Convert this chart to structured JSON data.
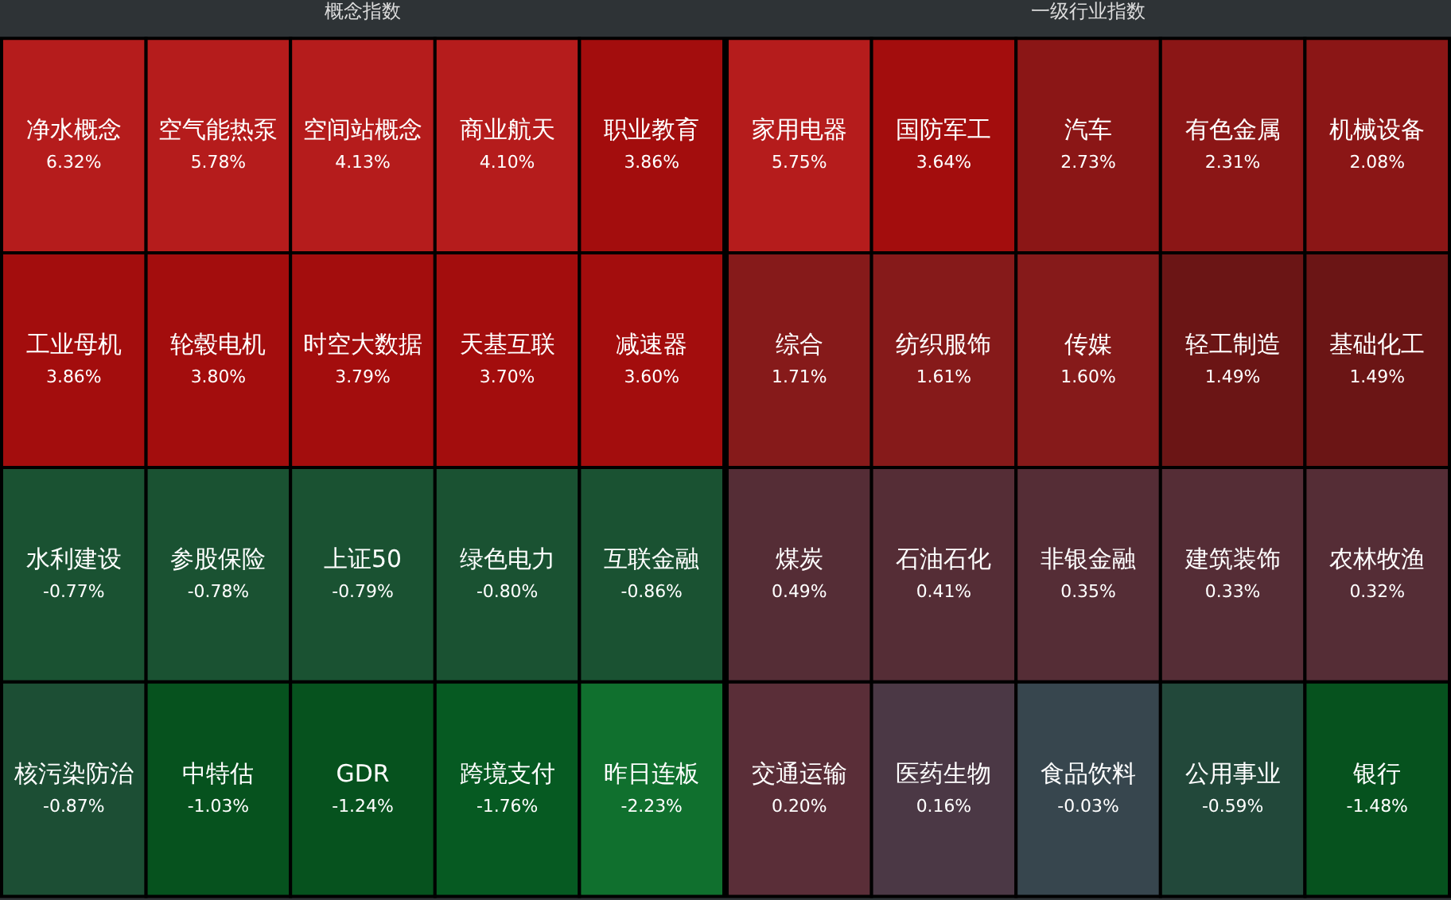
{
  "chart_data": [
    {
      "type": "other",
      "title": "概念指数",
      "categories": [
        "净水概念",
        "空气能热泵",
        "空间站概念",
        "商业航天",
        "职业教育",
        "工业母机",
        "轮毂电机",
        "时空大数据",
        "天基互联",
        "减速器",
        "水利建设",
        "参股保险",
        "上证50",
        "绿色电力",
        "互联金融",
        "核污染防治",
        "中特估",
        "GDR",
        "跨境支付",
        "昨日连板"
      ],
      "values": [
        6.32,
        5.78,
        4.13,
        4.1,
        3.86,
        3.86,
        3.8,
        3.79,
        3.7,
        3.6,
        -0.77,
        -0.78,
        -0.79,
        -0.8,
        -0.86,
        -0.87,
        -1.03,
        -1.24,
        -1.76,
        -2.23
      ],
      "value_labels": [
        "6.32%",
        "5.78%",
        "4.13%",
        "4.10%",
        "3.86%",
        "3.86%",
        "3.80%",
        "3.79%",
        "3.70%",
        "3.60%",
        "-0.77%",
        "-0.78%",
        "-0.79%",
        "-0.80%",
        "-0.86%",
        "-0.87%",
        "-1.03%",
        "-1.24%",
        "-1.76%",
        "-2.23%"
      ],
      "colors": [
        "#b51c1c",
        "#b51c1c",
        "#b51c1c",
        "#b51c1c",
        "#a30d0d",
        "#a30d0d",
        "#a30d0d",
        "#a30d0d",
        "#a30d0d",
        "#a30d0d",
        "#1a5232",
        "#1a5232",
        "#1a5232",
        "#1a5232",
        "#1a5232",
        "#1c4e34",
        "#06521e",
        "#06521e",
        "#065a22",
        "#10702e"
      ]
    },
    {
      "type": "other",
      "title": "一级行业指数",
      "categories": [
        "家用电器",
        "国防军工",
        "汽车",
        "有色金属",
        "机械设备",
        "综合",
        "纺织服饰",
        "传媒",
        "轻工制造",
        "基础化工",
        "煤炭",
        "石油石化",
        "非银金融",
        "建筑装饰",
        "农林牧渔",
        "交通运输",
        "医药生物",
        "食品饮料",
        "公用事业",
        "银行"
      ],
      "values": [
        5.75,
        3.64,
        2.73,
        2.31,
        2.08,
        1.71,
        1.61,
        1.6,
        1.49,
        1.49,
        0.49,
        0.41,
        0.35,
        0.33,
        0.32,
        0.2,
        0.16,
        -0.03,
        -0.59,
        -1.48
      ],
      "value_labels": [
        "5.75%",
        "3.64%",
        "2.73%",
        "2.31%",
        "2.08%",
        "1.71%",
        "1.61%",
        "1.60%",
        "1.49%",
        "1.49%",
        "0.49%",
        "0.41%",
        "0.35%",
        "0.33%",
        "0.32%",
        "0.20%",
        "0.16%",
        "-0.03%",
        "-0.59%",
        "-1.48%"
      ],
      "colors": [
        "#b51c1c",
        "#a30d0d",
        "#8b1616",
        "#8b1616",
        "#8b1616",
        "#861a1a",
        "#861a1a",
        "#861a1a",
        "#6b1515",
        "#6b1515",
        "#552d36",
        "#552d36",
        "#552d36",
        "#552d36",
        "#552d36",
        "#5a2e38",
        "#4b3845",
        "#37464e",
        "#22483a",
        "#06521e"
      ]
    }
  ]
}
